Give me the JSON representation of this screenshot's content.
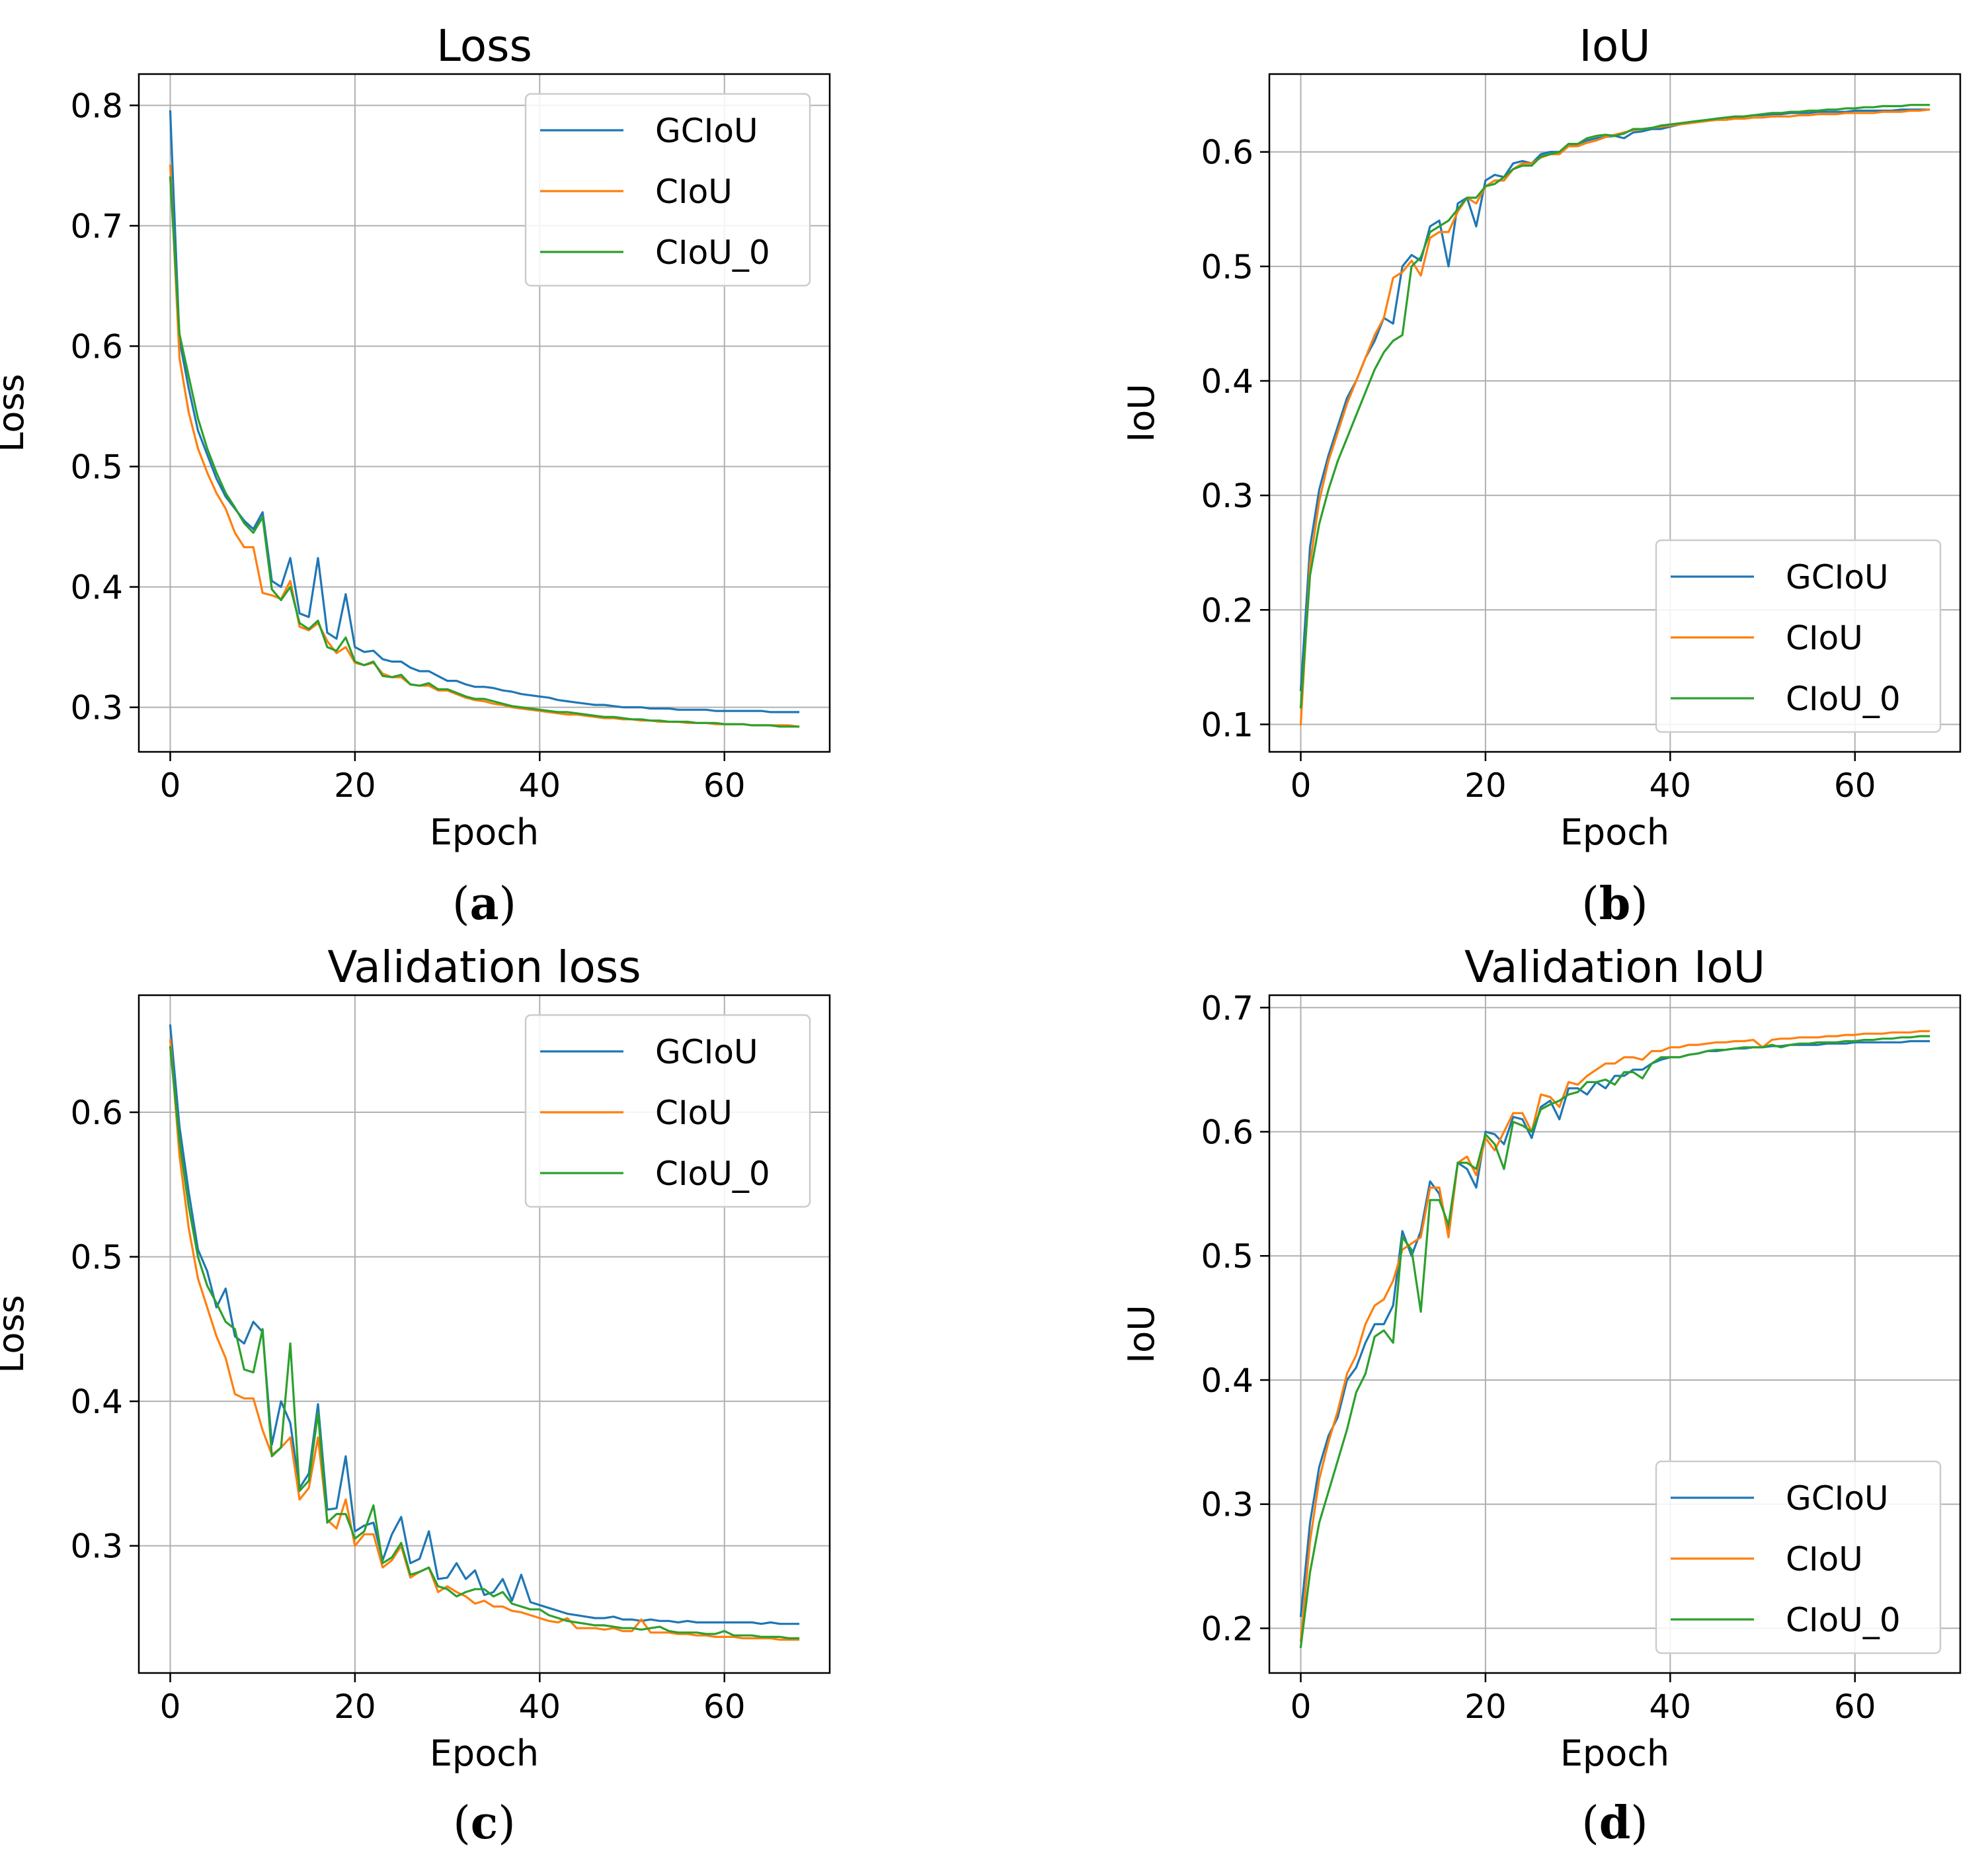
{
  "colors": {
    "GCIoU": "#1f77b4",
    "CIoU": "#ff7f0e",
    "CIoU_0": "#2ca02c"
  },
  "chart_data": [
    {
      "type": "line",
      "caption": "a",
      "title": "Loss",
      "xlabel": "Epoch",
      "ylabel": "Loss",
      "xlim": [
        -3.4,
        71.4
      ],
      "ylim": [
        0.263,
        0.826
      ],
      "xticks": [
        0,
        20,
        40,
        60
      ],
      "yticks": [
        0.3,
        0.4,
        0.5,
        0.6,
        0.7,
        0.8
      ],
      "xtick_labels": [
        "0",
        "20",
        "40",
        "60"
      ],
      "ytick_labels": [
        "0.3",
        "0.4",
        "0.5",
        "0.6",
        "0.7",
        "0.8"
      ],
      "grid": true,
      "legend_position": "top-right",
      "series": [
        {
          "name": "GCIoU",
          "color_key": "GCIoU",
          "values": [
            0.795,
            0.605,
            0.565,
            0.53,
            0.51,
            0.49,
            0.475,
            0.465,
            0.455,
            0.448,
            0.462,
            0.405,
            0.4,
            0.424,
            0.378,
            0.375,
            0.424,
            0.362,
            0.357,
            0.394,
            0.35,
            0.346,
            0.347,
            0.34,
            0.338,
            0.338,
            0.333,
            0.33,
            0.33,
            0.326,
            0.322,
            0.322,
            0.319,
            0.317,
            0.317,
            0.316,
            0.314,
            0.313,
            0.311,
            0.31,
            0.309,
            0.308,
            0.306,
            0.305,
            0.304,
            0.303,
            0.302,
            0.302,
            0.301,
            0.3,
            0.3,
            0.3,
            0.299,
            0.299,
            0.299,
            0.298,
            0.298,
            0.298,
            0.298,
            0.297,
            0.297,
            0.297,
            0.297,
            0.297,
            0.297,
            0.296,
            0.296,
            0.296,
            0.296
          ]
        },
        {
          "name": "CIoU",
          "color_key": "CIoU",
          "values": [
            0.75,
            0.59,
            0.545,
            0.515,
            0.495,
            0.478,
            0.465,
            0.445,
            0.433,
            0.433,
            0.395,
            0.393,
            0.39,
            0.405,
            0.367,
            0.364,
            0.37,
            0.355,
            0.345,
            0.35,
            0.337,
            0.335,
            0.337,
            0.328,
            0.325,
            0.325,
            0.319,
            0.318,
            0.318,
            0.314,
            0.314,
            0.311,
            0.308,
            0.306,
            0.305,
            0.303,
            0.302,
            0.3,
            0.299,
            0.298,
            0.297,
            0.296,
            0.295,
            0.294,
            0.294,
            0.293,
            0.292,
            0.291,
            0.291,
            0.29,
            0.29,
            0.289,
            0.289,
            0.288,
            0.288,
            0.288,
            0.287,
            0.287,
            0.287,
            0.286,
            0.286,
            0.286,
            0.286,
            0.285,
            0.285,
            0.285,
            0.285,
            0.285,
            0.284
          ]
        },
        {
          "name": "CIoU_0",
          "color_key": "CIoU_0",
          "values": [
            0.74,
            0.61,
            0.575,
            0.54,
            0.515,
            0.495,
            0.478,
            0.466,
            0.453,
            0.445,
            0.458,
            0.398,
            0.389,
            0.4,
            0.37,
            0.365,
            0.372,
            0.35,
            0.347,
            0.358,
            0.338,
            0.335,
            0.338,
            0.326,
            0.325,
            0.327,
            0.319,
            0.318,
            0.32,
            0.315,
            0.315,
            0.312,
            0.309,
            0.307,
            0.307,
            0.305,
            0.303,
            0.301,
            0.3,
            0.299,
            0.298,
            0.297,
            0.296,
            0.296,
            0.295,
            0.294,
            0.293,
            0.292,
            0.292,
            0.291,
            0.29,
            0.29,
            0.289,
            0.289,
            0.288,
            0.288,
            0.288,
            0.287,
            0.287,
            0.287,
            0.286,
            0.286,
            0.286,
            0.285,
            0.285,
            0.285,
            0.284,
            0.284,
            0.284
          ]
        }
      ]
    },
    {
      "type": "line",
      "caption": "b",
      "title": "IoU",
      "xlabel": "Epoch",
      "ylabel": "IoU",
      "xlim": [
        -3.4,
        71.4
      ],
      "ylim": [
        0.076,
        0.668
      ],
      "xticks": [
        0,
        20,
        40,
        60
      ],
      "yticks": [
        0.1,
        0.2,
        0.3,
        0.4,
        0.5,
        0.6
      ],
      "xtick_labels": [
        "0",
        "20",
        "40",
        "60"
      ],
      "ytick_labels": [
        "0.1",
        "0.2",
        "0.3",
        "0.4",
        "0.5",
        "0.6"
      ],
      "grid": true,
      "legend_position": "bottom-right",
      "series": [
        {
          "name": "GCIoU",
          "color_key": "GCIoU",
          "values": [
            0.13,
            0.255,
            0.305,
            0.335,
            0.36,
            0.385,
            0.4,
            0.42,
            0.435,
            0.455,
            0.45,
            0.5,
            0.51,
            0.505,
            0.535,
            0.54,
            0.5,
            0.555,
            0.56,
            0.535,
            0.575,
            0.58,
            0.578,
            0.59,
            0.592,
            0.59,
            0.598,
            0.6,
            0.6,
            0.605,
            0.607,
            0.61,
            0.612,
            0.613,
            0.614,
            0.612,
            0.617,
            0.618,
            0.62,
            0.62,
            0.622,
            0.624,
            0.626,
            0.627,
            0.628,
            0.629,
            0.63,
            0.63,
            0.631,
            0.632,
            0.632,
            0.633,
            0.633,
            0.634,
            0.634,
            0.634,
            0.635,
            0.635,
            0.635,
            0.635,
            0.636,
            0.636,
            0.636,
            0.636,
            0.636,
            0.637,
            0.637,
            0.637,
            0.637
          ]
        },
        {
          "name": "CIoU",
          "color_key": "CIoU",
          "values": [
            0.1,
            0.24,
            0.295,
            0.33,
            0.355,
            0.38,
            0.4,
            0.42,
            0.44,
            0.455,
            0.49,
            0.495,
            0.505,
            0.492,
            0.525,
            0.53,
            0.53,
            0.548,
            0.56,
            0.555,
            0.57,
            0.575,
            0.575,
            0.585,
            0.59,
            0.59,
            0.595,
            0.598,
            0.598,
            0.605,
            0.605,
            0.608,
            0.61,
            0.613,
            0.615,
            0.617,
            0.619,
            0.62,
            0.621,
            0.622,
            0.623,
            0.624,
            0.625,
            0.626,
            0.627,
            0.628,
            0.628,
            0.629,
            0.629,
            0.63,
            0.63,
            0.631,
            0.631,
            0.631,
            0.632,
            0.632,
            0.633,
            0.633,
            0.633,
            0.634,
            0.634,
            0.634,
            0.634,
            0.635,
            0.635,
            0.635,
            0.636,
            0.636,
            0.637
          ]
        },
        {
          "name": "CIoU_0",
          "color_key": "CIoU_0",
          "values": [
            0.115,
            0.23,
            0.275,
            0.305,
            0.33,
            0.35,
            0.37,
            0.39,
            0.41,
            0.425,
            0.435,
            0.44,
            0.5,
            0.508,
            0.53,
            0.535,
            0.54,
            0.55,
            0.56,
            0.56,
            0.57,
            0.572,
            0.578,
            0.585,
            0.588,
            0.588,
            0.596,
            0.598,
            0.6,
            0.607,
            0.607,
            0.612,
            0.614,
            0.615,
            0.614,
            0.616,
            0.62,
            0.62,
            0.621,
            0.623,
            0.624,
            0.625,
            0.626,
            0.627,
            0.628,
            0.629,
            0.63,
            0.631,
            0.631,
            0.632,
            0.633,
            0.634,
            0.634,
            0.635,
            0.635,
            0.636,
            0.636,
            0.637,
            0.637,
            0.638,
            0.638,
            0.639,
            0.639,
            0.64,
            0.64,
            0.64,
            0.641,
            0.641,
            0.641
          ]
        }
      ]
    },
    {
      "type": "line",
      "caption": "c",
      "title": "Validation loss",
      "xlabel": "Epoch",
      "ylabel": "Loss",
      "xlim": [
        -3.4,
        71.4
      ],
      "ylim": [
        0.212,
        0.681
      ],
      "xticks": [
        0,
        20,
        40,
        60
      ],
      "yticks": [
        0.3,
        0.4,
        0.5,
        0.6
      ],
      "xtick_labels": [
        "0",
        "20",
        "40",
        "60"
      ],
      "ytick_labels": [
        "0.3",
        "0.4",
        "0.5",
        "0.6"
      ],
      "grid": true,
      "legend_position": "top-right",
      "series": [
        {
          "name": "GCIoU",
          "color_key": "GCIoU",
          "values": [
            0.66,
            0.59,
            0.545,
            0.505,
            0.49,
            0.465,
            0.478,
            0.445,
            0.44,
            0.455,
            0.448,
            0.37,
            0.4,
            0.385,
            0.34,
            0.35,
            0.398,
            0.325,
            0.326,
            0.362,
            0.31,
            0.314,
            0.316,
            0.29,
            0.308,
            0.32,
            0.288,
            0.291,
            0.31,
            0.277,
            0.278,
            0.288,
            0.277,
            0.283,
            0.266,
            0.268,
            0.277,
            0.262,
            0.28,
            0.261,
            0.259,
            0.257,
            0.255,
            0.253,
            0.252,
            0.251,
            0.25,
            0.25,
            0.251,
            0.249,
            0.249,
            0.248,
            0.249,
            0.248,
            0.248,
            0.247,
            0.248,
            0.247,
            0.247,
            0.247,
            0.247,
            0.247,
            0.247,
            0.247,
            0.246,
            0.247,
            0.246,
            0.246,
            0.246
          ]
        },
        {
          "name": "CIoU",
          "color_key": "CIoU",
          "values": [
            0.65,
            0.57,
            0.52,
            0.485,
            0.465,
            0.445,
            0.43,
            0.405,
            0.402,
            0.402,
            0.38,
            0.363,
            0.368,
            0.375,
            0.332,
            0.34,
            0.375,
            0.318,
            0.312,
            0.332,
            0.3,
            0.308,
            0.308,
            0.285,
            0.29,
            0.3,
            0.278,
            0.282,
            0.285,
            0.268,
            0.272,
            0.268,
            0.265,
            0.26,
            0.262,
            0.258,
            0.258,
            0.255,
            0.254,
            0.252,
            0.25,
            0.248,
            0.247,
            0.25,
            0.243,
            0.243,
            0.243,
            0.242,
            0.243,
            0.241,
            0.241,
            0.249,
            0.24,
            0.24,
            0.24,
            0.239,
            0.239,
            0.238,
            0.238,
            0.237,
            0.237,
            0.237,
            0.236,
            0.236,
            0.236,
            0.236,
            0.235,
            0.235,
            0.235
          ]
        },
        {
          "name": "CIoU_0",
          "color_key": "CIoU_0",
          "values": [
            0.645,
            0.58,
            0.535,
            0.5,
            0.48,
            0.468,
            0.455,
            0.45,
            0.422,
            0.42,
            0.45,
            0.362,
            0.368,
            0.44,
            0.338,
            0.345,
            0.392,
            0.316,
            0.322,
            0.322,
            0.305,
            0.31,
            0.328,
            0.288,
            0.292,
            0.302,
            0.28,
            0.282,
            0.285,
            0.272,
            0.27,
            0.265,
            0.268,
            0.27,
            0.27,
            0.265,
            0.268,
            0.26,
            0.258,
            0.256,
            0.256,
            0.252,
            0.25,
            0.248,
            0.247,
            0.246,
            0.245,
            0.245,
            0.244,
            0.243,
            0.243,
            0.242,
            0.243,
            0.244,
            0.241,
            0.24,
            0.24,
            0.24,
            0.239,
            0.239,
            0.241,
            0.238,
            0.238,
            0.238,
            0.237,
            0.237,
            0.237,
            0.236,
            0.236
          ]
        }
      ]
    },
    {
      "type": "line",
      "caption": "d",
      "title": "Validation IoU",
      "xlabel": "Epoch",
      "ylabel": "IoU",
      "xlim": [
        -3.4,
        71.4
      ],
      "ylim": [
        0.164,
        0.71
      ],
      "xticks": [
        0,
        20,
        40,
        60
      ],
      "yticks": [
        0.2,
        0.3,
        0.4,
        0.5,
        0.6,
        0.7
      ],
      "xtick_labels": [
        "0",
        "20",
        "40",
        "60"
      ],
      "ytick_labels": [
        "0.2",
        "0.3",
        "0.4",
        "0.5",
        "0.6",
        "0.7"
      ],
      "grid": true,
      "legend_position": "bottom-right",
      "series": [
        {
          "name": "GCIoU",
          "color_key": "GCIoU",
          "values": [
            0.21,
            0.285,
            0.33,
            0.355,
            0.37,
            0.4,
            0.41,
            0.43,
            0.445,
            0.445,
            0.46,
            0.52,
            0.5,
            0.52,
            0.56,
            0.55,
            0.52,
            0.575,
            0.57,
            0.555,
            0.6,
            0.598,
            0.59,
            0.612,
            0.61,
            0.595,
            0.62,
            0.625,
            0.61,
            0.635,
            0.635,
            0.63,
            0.64,
            0.635,
            0.645,
            0.645,
            0.65,
            0.65,
            0.655,
            0.658,
            0.66,
            0.66,
            0.662,
            0.663,
            0.665,
            0.665,
            0.666,
            0.667,
            0.667,
            0.668,
            0.668,
            0.669,
            0.669,
            0.67,
            0.67,
            0.67,
            0.67,
            0.671,
            0.671,
            0.671,
            0.672,
            0.672,
            0.672,
            0.672,
            0.672,
            0.672,
            0.673,
            0.673,
            0.673
          ]
        },
        {
          "name": "CIoU",
          "color_key": "CIoU",
          "values": [
            0.19,
            0.27,
            0.32,
            0.35,
            0.375,
            0.405,
            0.42,
            0.445,
            0.46,
            0.465,
            0.48,
            0.505,
            0.51,
            0.515,
            0.555,
            0.555,
            0.515,
            0.575,
            0.58,
            0.565,
            0.595,
            0.585,
            0.6,
            0.615,
            0.615,
            0.6,
            0.63,
            0.628,
            0.62,
            0.64,
            0.638,
            0.645,
            0.65,
            0.655,
            0.655,
            0.66,
            0.66,
            0.658,
            0.665,
            0.665,
            0.668,
            0.668,
            0.67,
            0.67,
            0.671,
            0.672,
            0.672,
            0.673,
            0.673,
            0.674,
            0.668,
            0.674,
            0.675,
            0.675,
            0.676,
            0.676,
            0.676,
            0.677,
            0.677,
            0.678,
            0.678,
            0.679,
            0.679,
            0.679,
            0.68,
            0.68,
            0.68,
            0.681,
            0.681
          ]
        },
        {
          "name": "CIoU_0",
          "color_key": "CIoU_0",
          "values": [
            0.185,
            0.245,
            0.285,
            0.31,
            0.335,
            0.36,
            0.39,
            0.405,
            0.435,
            0.44,
            0.43,
            0.515,
            0.505,
            0.455,
            0.545,
            0.545,
            0.525,
            0.575,
            0.575,
            0.57,
            0.598,
            0.59,
            0.57,
            0.608,
            0.605,
            0.6,
            0.618,
            0.622,
            0.625,
            0.63,
            0.632,
            0.64,
            0.64,
            0.642,
            0.638,
            0.648,
            0.648,
            0.643,
            0.655,
            0.66,
            0.66,
            0.66,
            0.662,
            0.663,
            0.665,
            0.666,
            0.666,
            0.667,
            0.668,
            0.668,
            0.668,
            0.67,
            0.668,
            0.67,
            0.671,
            0.671,
            0.672,
            0.672,
            0.672,
            0.673,
            0.673,
            0.674,
            0.674,
            0.675,
            0.675,
            0.676,
            0.676,
            0.677,
            0.677
          ]
        }
      ]
    }
  ]
}
